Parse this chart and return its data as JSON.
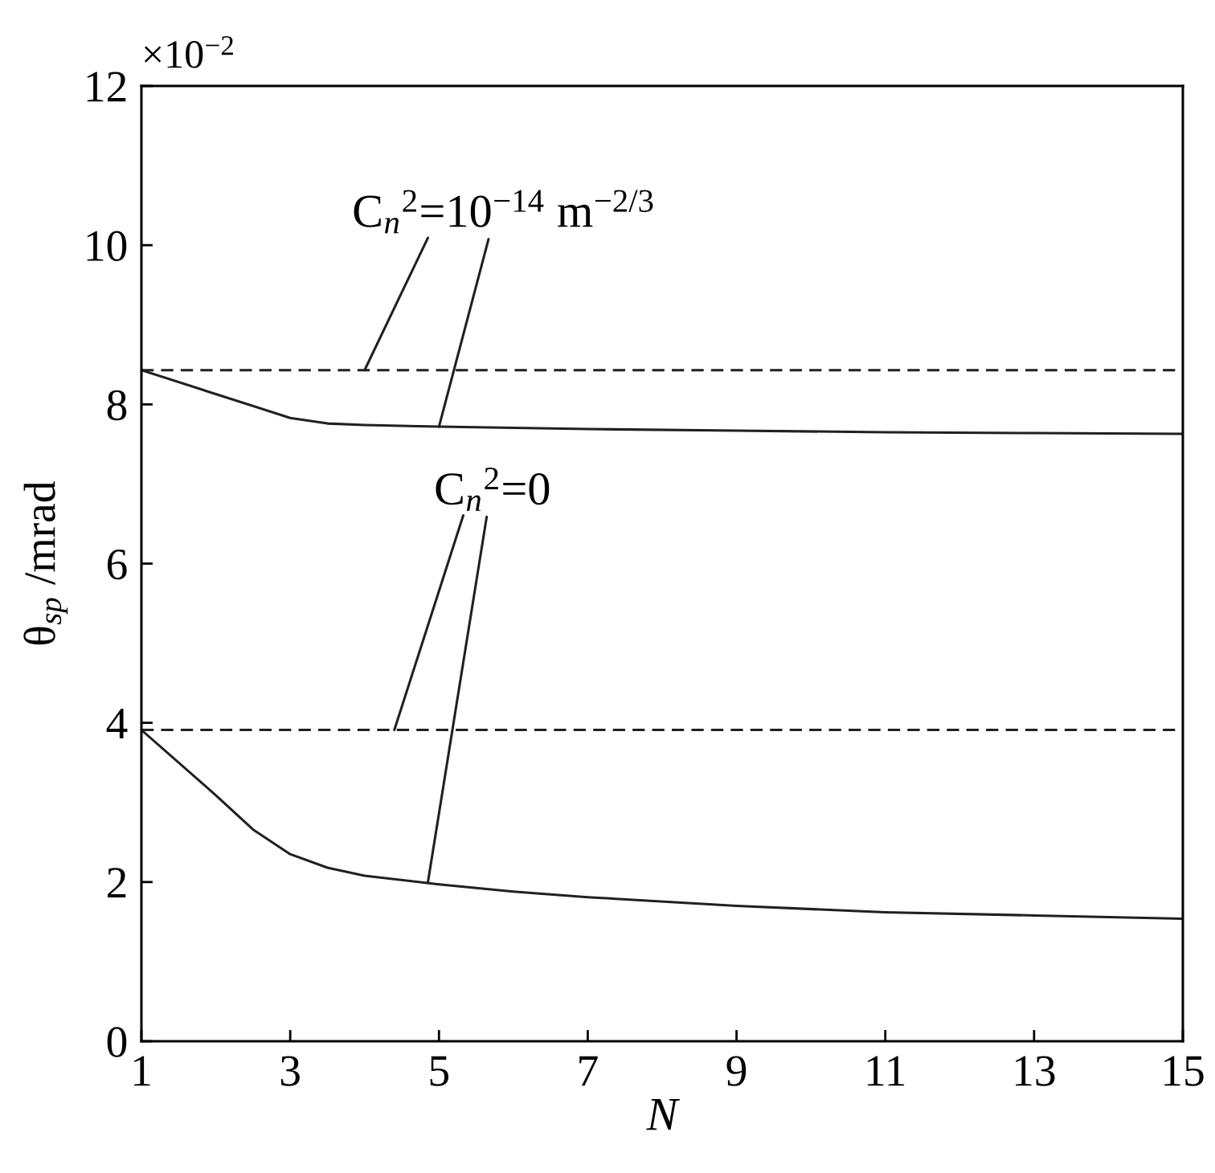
{
  "chart_data": {
    "type": "line",
    "xlabel": "N",
    "ylabel": "θ$_{sp}$ /mrad",
    "xlim": [
      1,
      15
    ],
    "xticks": [
      1,
      3,
      5,
      7,
      9,
      11,
      13,
      15
    ],
    "ylim": [
      0,
      12
    ],
    "yticks": [
      0,
      2,
      4,
      6,
      8,
      10,
      12
    ],
    "grid": false,
    "legend": false,
    "series": [
      {
        "color": "#231f20",
        "line_style": "dashed",
        "x": [
          1,
          15
        ],
        "values": [
          8.43,
          8.43
        ]
      },
      {
        "color": "#231f20",
        "line_style": "solid",
        "x": [
          1,
          2,
          3,
          3.5,
          4,
          5,
          7,
          9,
          11,
          13,
          15
        ],
        "values": [
          8.43,
          8.13,
          7.83,
          7.76,
          7.74,
          7.72,
          7.69,
          7.67,
          7.65,
          7.64,
          7.63
        ]
      },
      {
        "color": "#231f20",
        "line_style": "dashed",
        "x": [
          1,
          15
        ],
        "values": [
          3.91,
          3.91
        ]
      },
      {
        "color": "#231f20",
        "line_style": "solid",
        "x": [
          1,
          2,
          2.5,
          3,
          3.5,
          4,
          5,
          6,
          7,
          9,
          11,
          13,
          15
        ],
        "values": [
          3.91,
          3.09,
          2.66,
          2.35,
          2.18,
          2.08,
          1.97,
          1.88,
          1.81,
          1.7,
          1.62,
          1.58,
          1.54
        ]
      }
    ],
    "annotations": [
      "×10$^{−2}$",
      {
        "text": "C$_{n}$$^{2}$=10$^{−14}$ m$^{−2/3}$",
        "x": 5,
        "y": 7.72
      },
      {
        "text": "C$_{n}$$^{2}$=0",
        "x": 4.85,
        "y": 1.99
      }
    ]
  }
}
